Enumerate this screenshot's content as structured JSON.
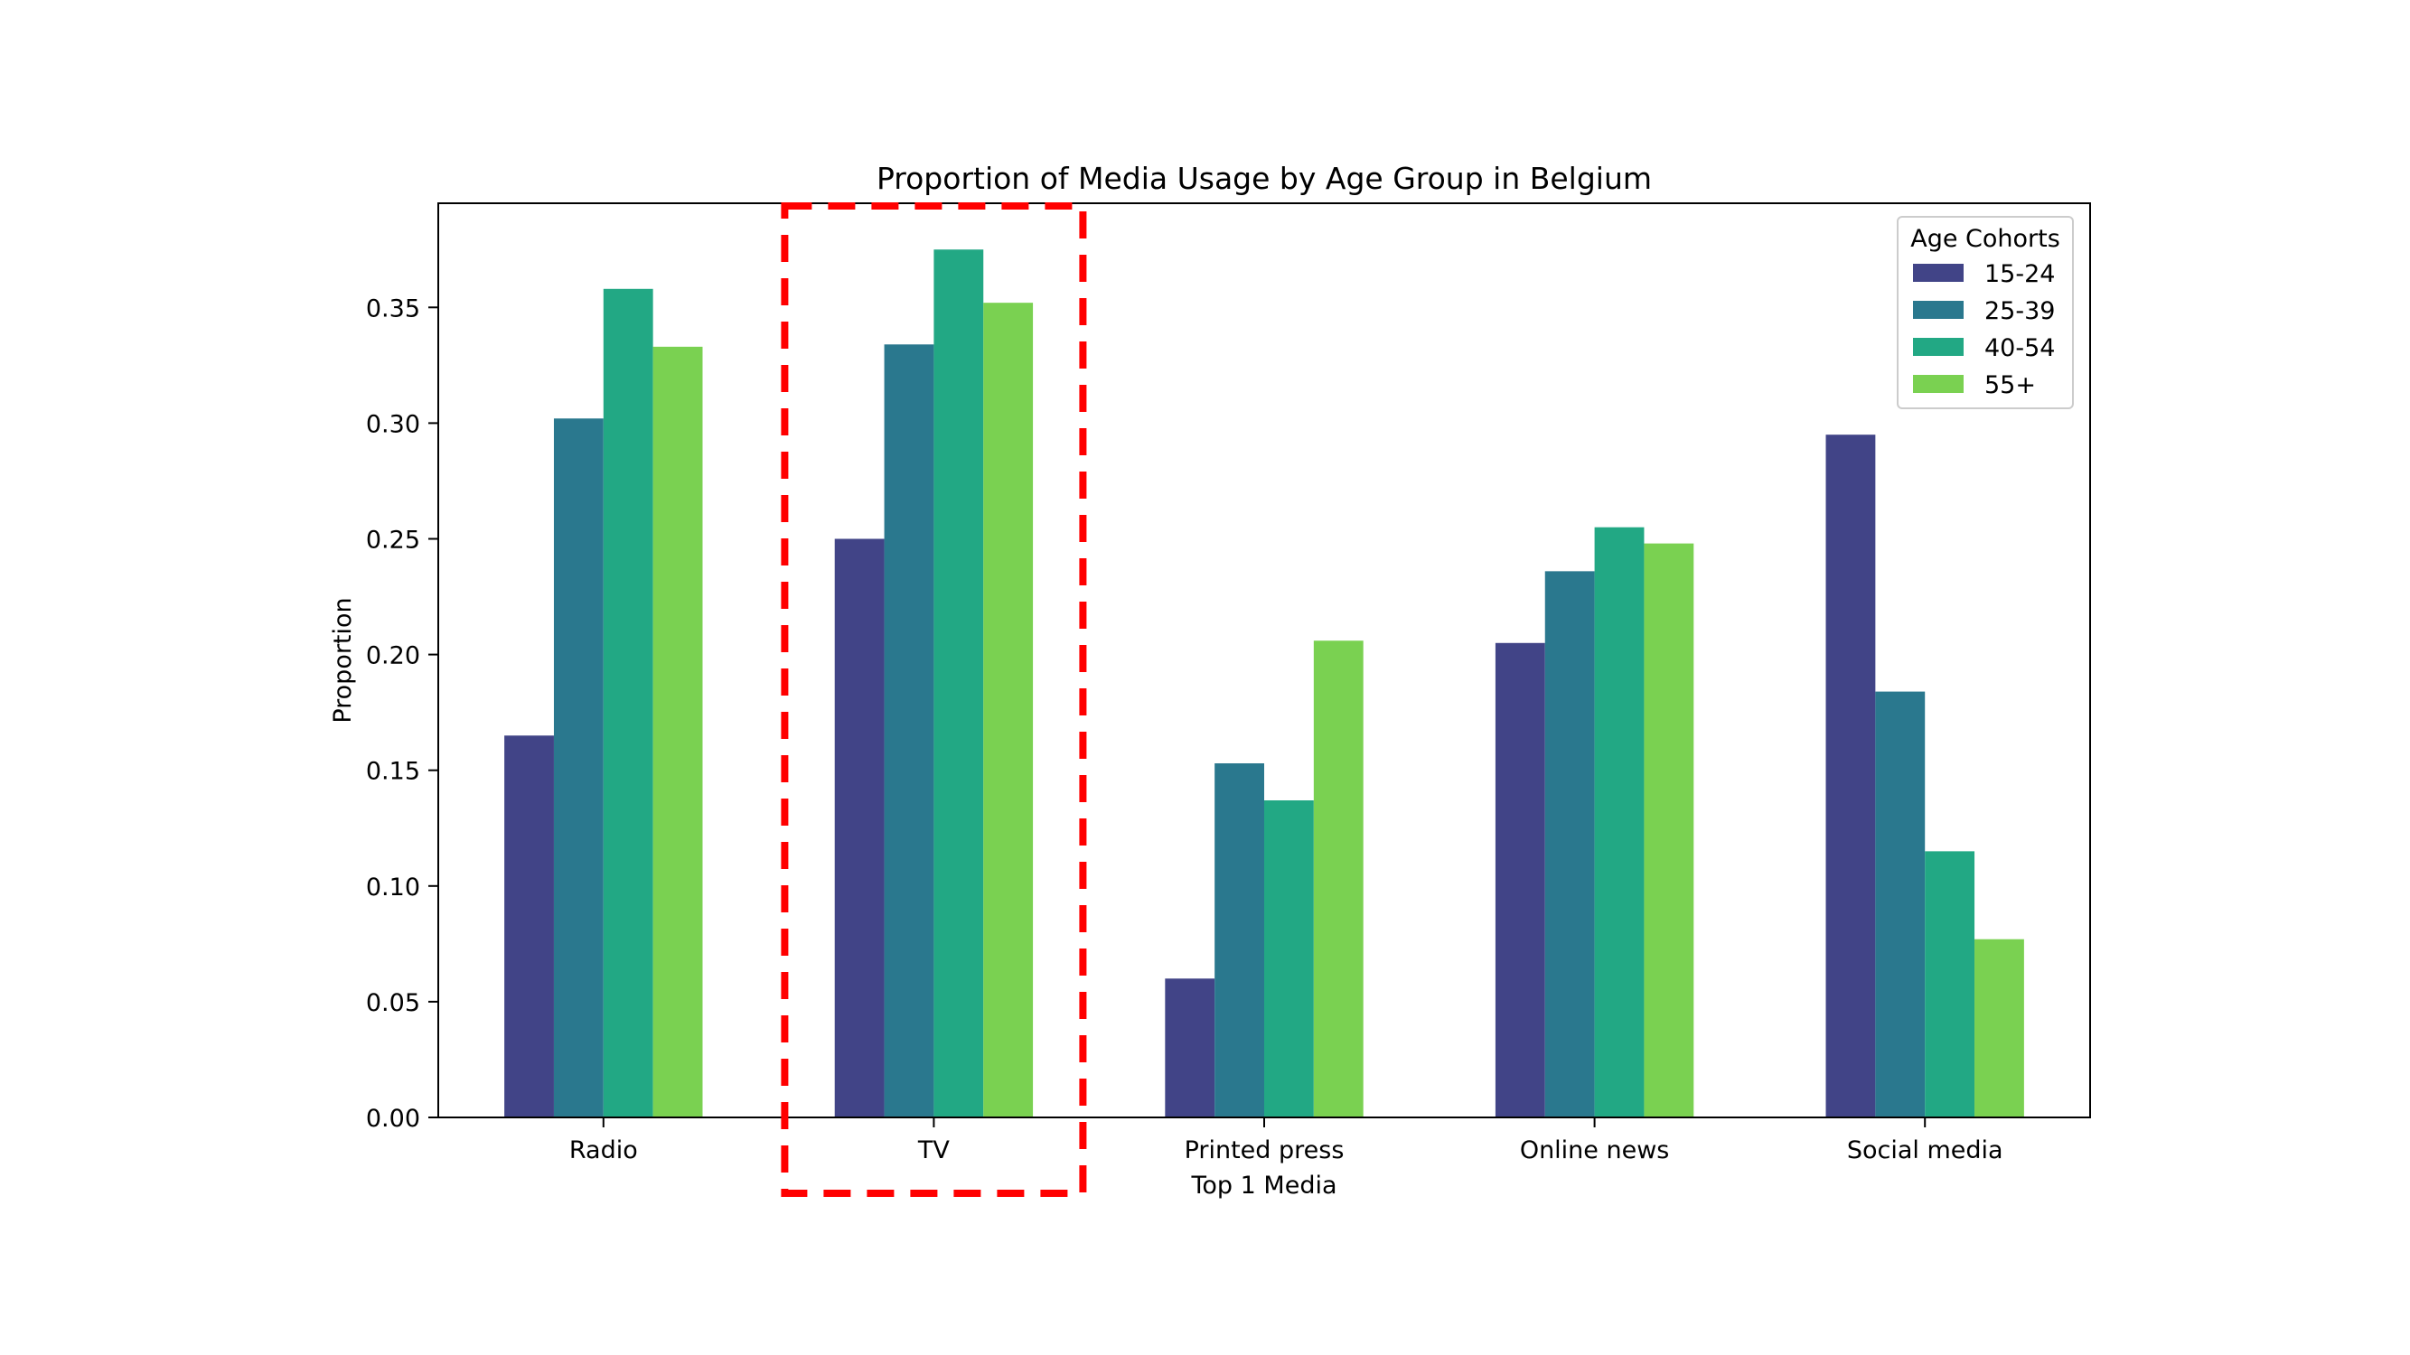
{
  "chart_data": {
    "type": "bar",
    "title": "Proportion of Media Usage by Age Group in Belgium",
    "xlabel": "Top 1 Media",
    "ylabel": "Proportion",
    "categories": [
      "Radio",
      "TV",
      "Printed press",
      "Online news",
      "Social media"
    ],
    "series": [
      {
        "name": "15-24",
        "color": "#414487",
        "values": [
          0.165,
          0.25,
          0.06,
          0.205,
          0.295
        ]
      },
      {
        "name": "25-39",
        "color": "#2a788e",
        "values": [
          0.302,
          0.334,
          0.153,
          0.236,
          0.184
        ]
      },
      {
        "name": "40-54",
        "color": "#22a884",
        "values": [
          0.358,
          0.375,
          0.137,
          0.255,
          0.115
        ]
      },
      {
        "name": "55+",
        "color": "#7ad151",
        "values": [
          0.333,
          0.352,
          0.206,
          0.248,
          0.077
        ]
      }
    ],
    "ylim": [
      0,
      0.395
    ],
    "yticks": [
      "0.00",
      "0.05",
      "0.10",
      "0.15",
      "0.20",
      "0.25",
      "0.30",
      "0.35"
    ],
    "grid": false,
    "legend": {
      "title": "Age Cohorts",
      "position": "top-right"
    },
    "highlight": {
      "category": "TV",
      "style": "red dashed box",
      "color": "#ff0000"
    }
  }
}
